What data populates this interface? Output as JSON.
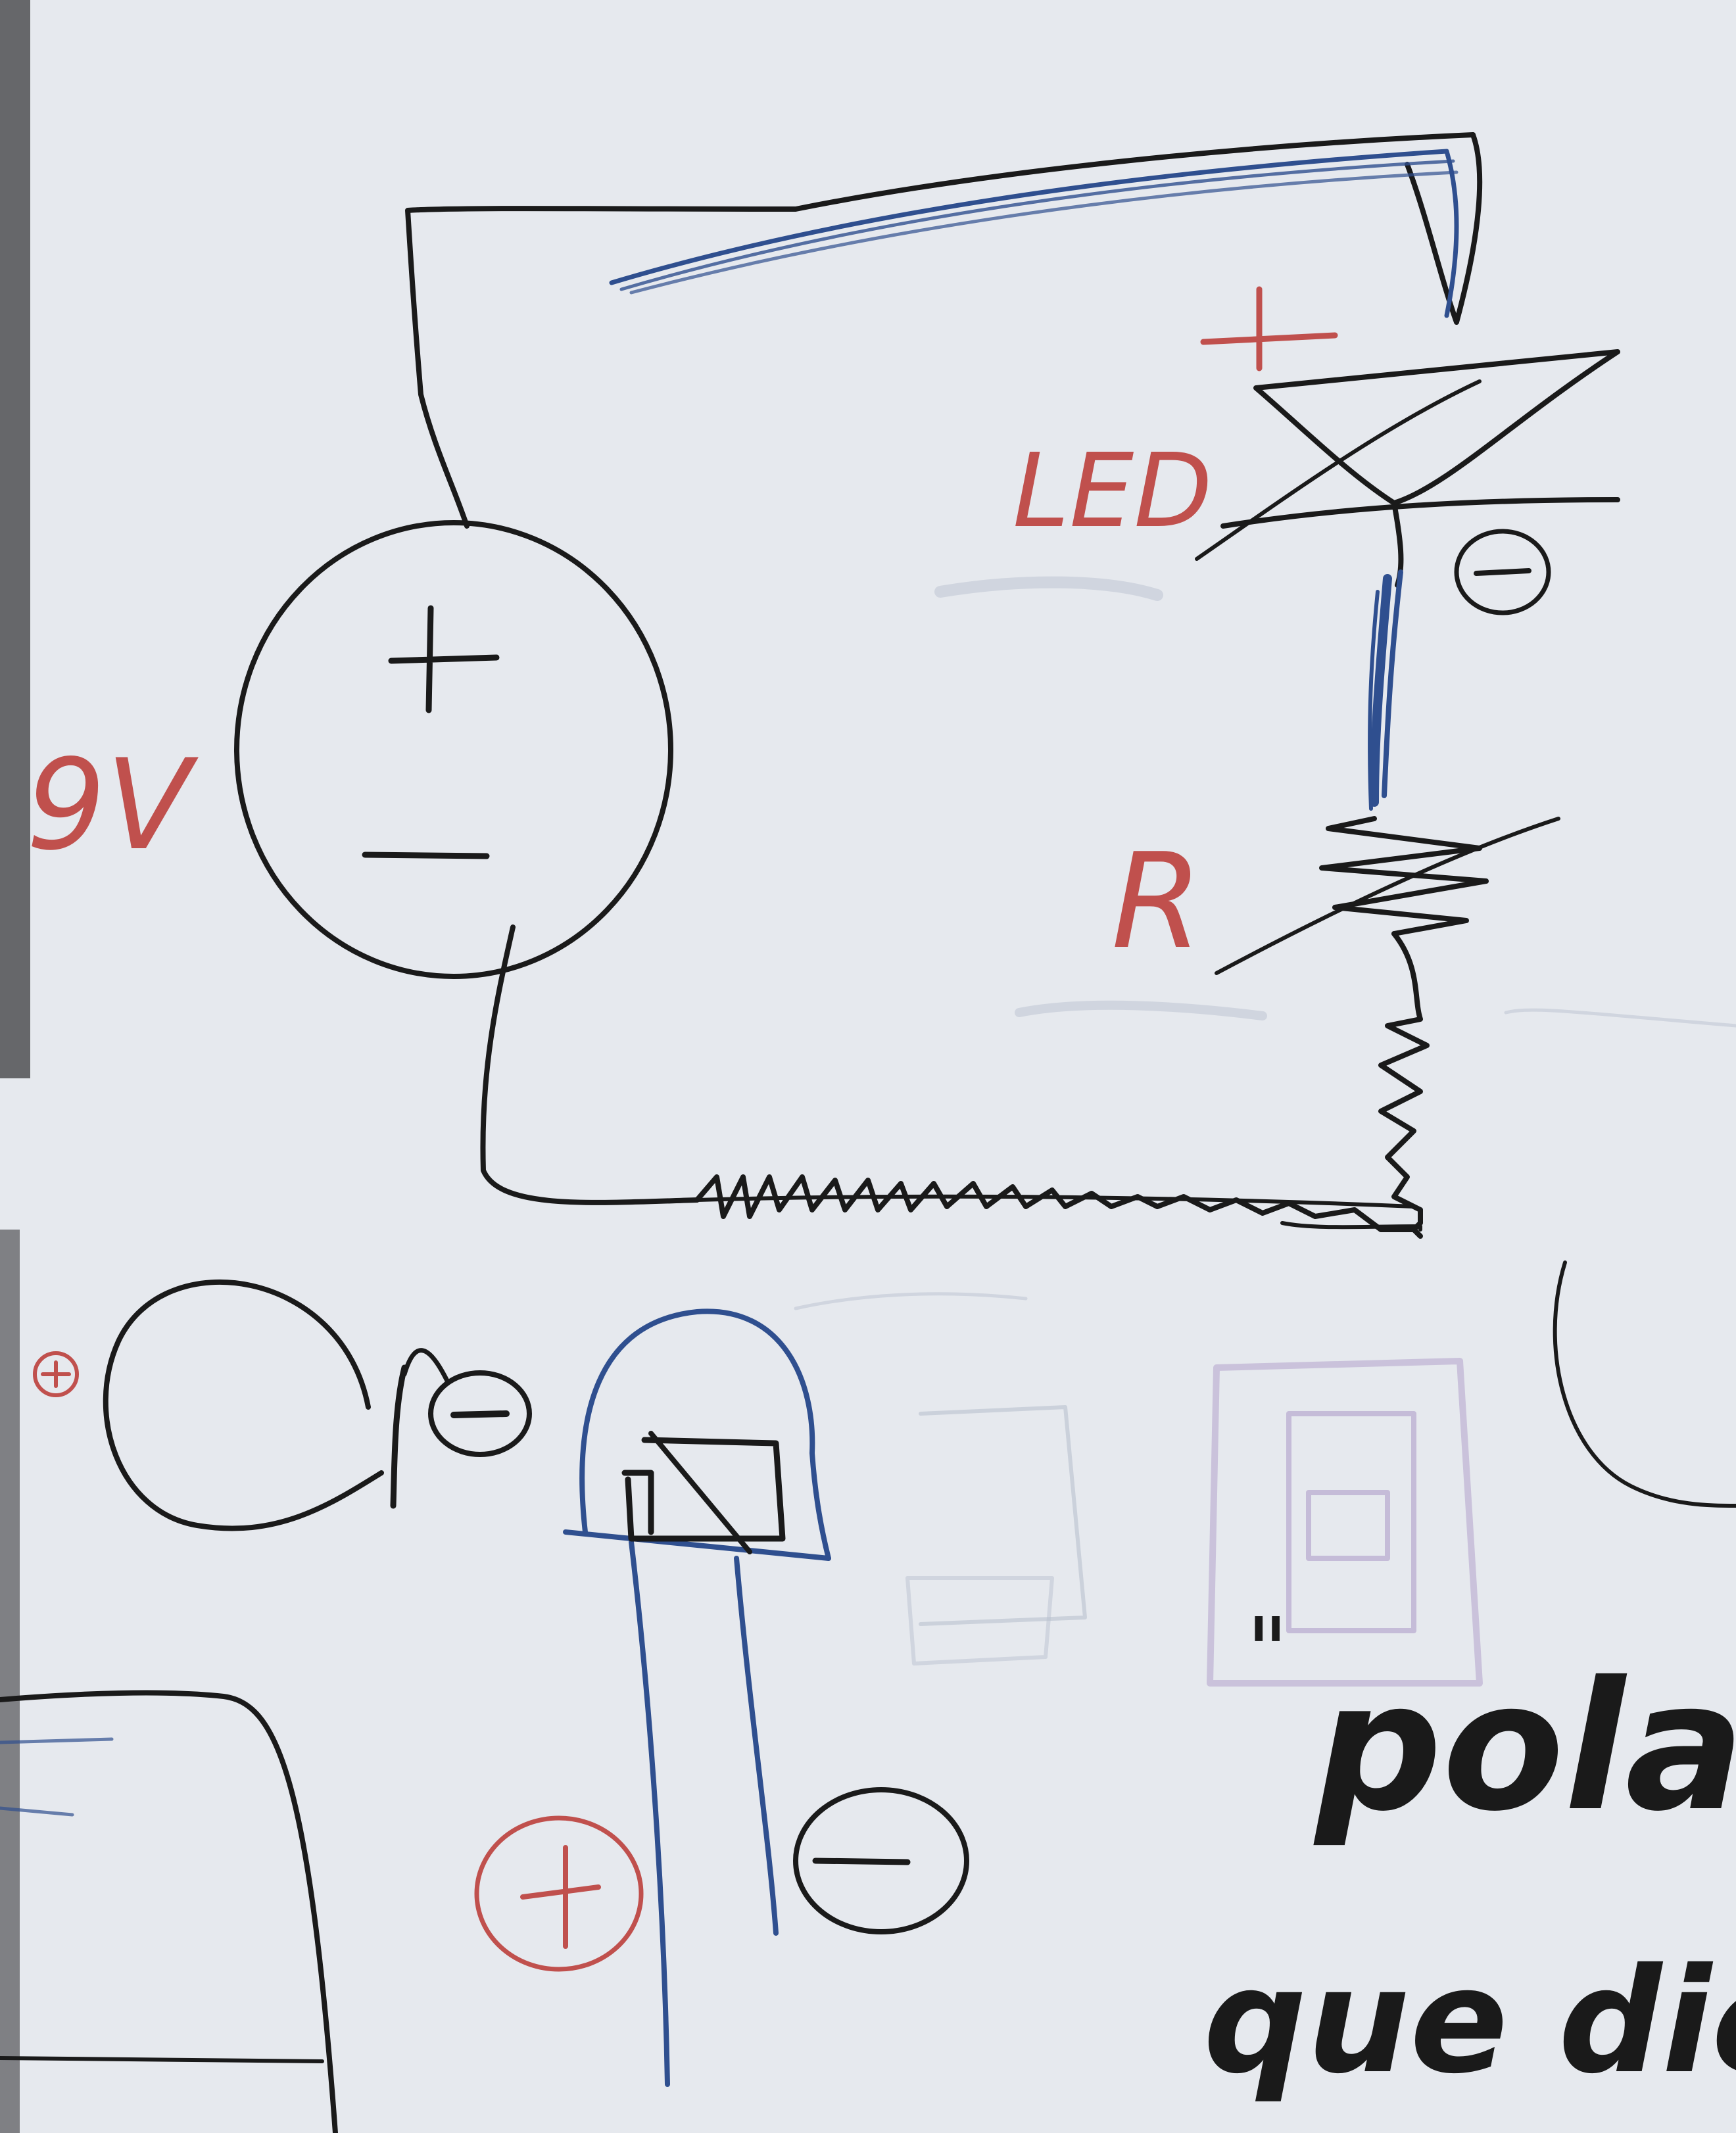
{
  "labels": {
    "voltage": "9V",
    "led": "LED",
    "resistor": "R",
    "battery_plus": "+",
    "battery_minus": "−",
    "led_plus": "+",
    "led_minus": "−",
    "bottom_plus": "+",
    "bottom_minus": "−",
    "small_plus": "+",
    "small_minus": "−",
    "quote_mark": "\"",
    "word_polar": "polari",
    "word_que": "que diep"
  },
  "colors": {
    "board": "#e6e9ee",
    "black_ink": "#1a1a1a",
    "blue_ink": "#2f4f8f",
    "red_ink": "#c0504d",
    "ghost_ink": "#b9c1cf"
  }
}
